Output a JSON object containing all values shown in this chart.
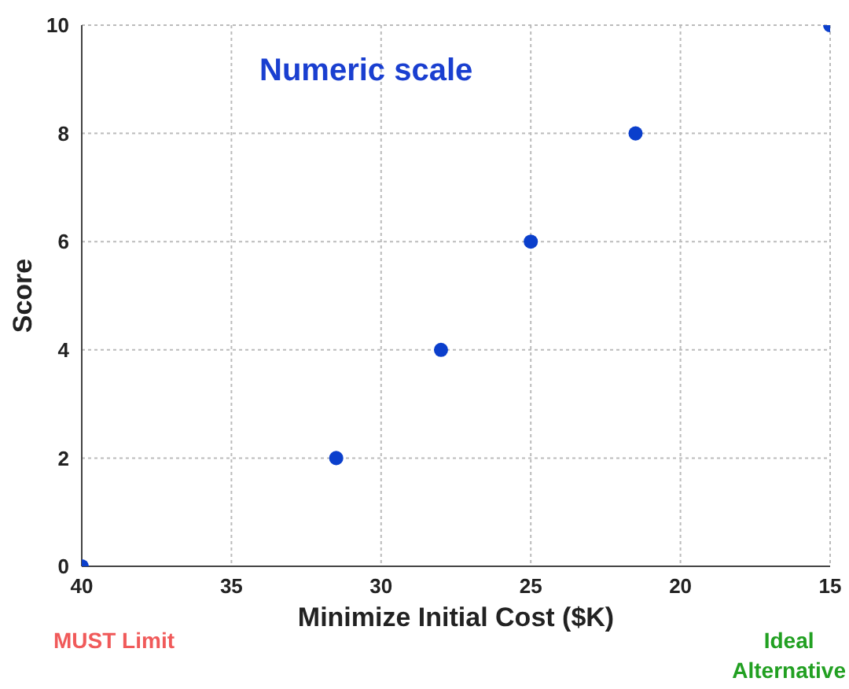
{
  "chart_data": {
    "type": "scatter",
    "title": "Numeric scale",
    "xlabel": "Minimize Initial Cost ($K)",
    "ylabel": "Score",
    "x": [
      40,
      31.5,
      28,
      25,
      21.5,
      15
    ],
    "series": [
      {
        "color": "#0b3fcc",
        "values": [
          0,
          2,
          4,
          6,
          8,
          10
        ]
      }
    ],
    "xlim": [
      40,
      15
    ],
    "xticks": [
      40,
      35,
      30,
      25,
      20,
      15
    ],
    "ylim": [
      0,
      10
    ],
    "yticks": [
      0,
      2,
      4,
      6,
      8,
      10
    ],
    "grid": true,
    "marker": "circle",
    "annotations": [
      "MUST Limit",
      "Ideal\nAlternative"
    ]
  }
}
